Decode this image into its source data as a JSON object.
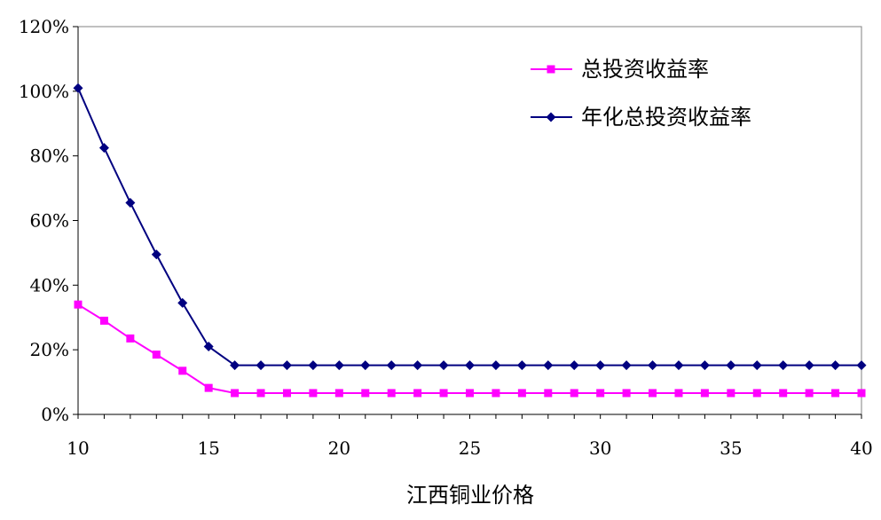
{
  "chart_data": {
    "type": "line",
    "title": "",
    "xlabel": "江西铜业价格",
    "ylabel": "",
    "xlim": [
      10,
      40
    ],
    "ylim": [
      0,
      1.2
    ],
    "xticks": [
      "10",
      "15",
      "20",
      "25",
      "30",
      "35",
      "40"
    ],
    "yticks": [
      "0%",
      "20%",
      "40%",
      "60%",
      "80%",
      "100%",
      "120%"
    ],
    "grid": false,
    "legend_position": "top-right",
    "x": [
      10,
      11,
      12,
      13,
      14,
      15,
      16,
      17,
      18,
      19,
      20,
      21,
      22,
      23,
      24,
      25,
      26,
      27,
      28,
      29,
      30,
      31,
      32,
      33,
      34,
      35,
      36,
      37,
      38,
      39,
      40
    ],
    "series": [
      {
        "name": "总投资收益率",
        "color": "#ff00ff",
        "marker": "square",
        "values": [
          0.34,
          0.29,
          0.235,
          0.185,
          0.135,
          0.082,
          0.066,
          0.066,
          0.066,
          0.066,
          0.066,
          0.066,
          0.066,
          0.066,
          0.066,
          0.066,
          0.066,
          0.066,
          0.066,
          0.066,
          0.066,
          0.066,
          0.066,
          0.066,
          0.066,
          0.066,
          0.066,
          0.066,
          0.066,
          0.066,
          0.066
        ]
      },
      {
        "name": "年化总投资收益率",
        "color": "#000080",
        "marker": "diamond",
        "values": [
          1.01,
          0.825,
          0.655,
          0.495,
          0.345,
          0.21,
          0.152,
          0.152,
          0.152,
          0.152,
          0.152,
          0.152,
          0.152,
          0.152,
          0.152,
          0.152,
          0.152,
          0.152,
          0.152,
          0.152,
          0.152,
          0.152,
          0.152,
          0.152,
          0.152,
          0.152,
          0.152,
          0.152,
          0.152,
          0.152,
          0.152
        ]
      }
    ]
  }
}
